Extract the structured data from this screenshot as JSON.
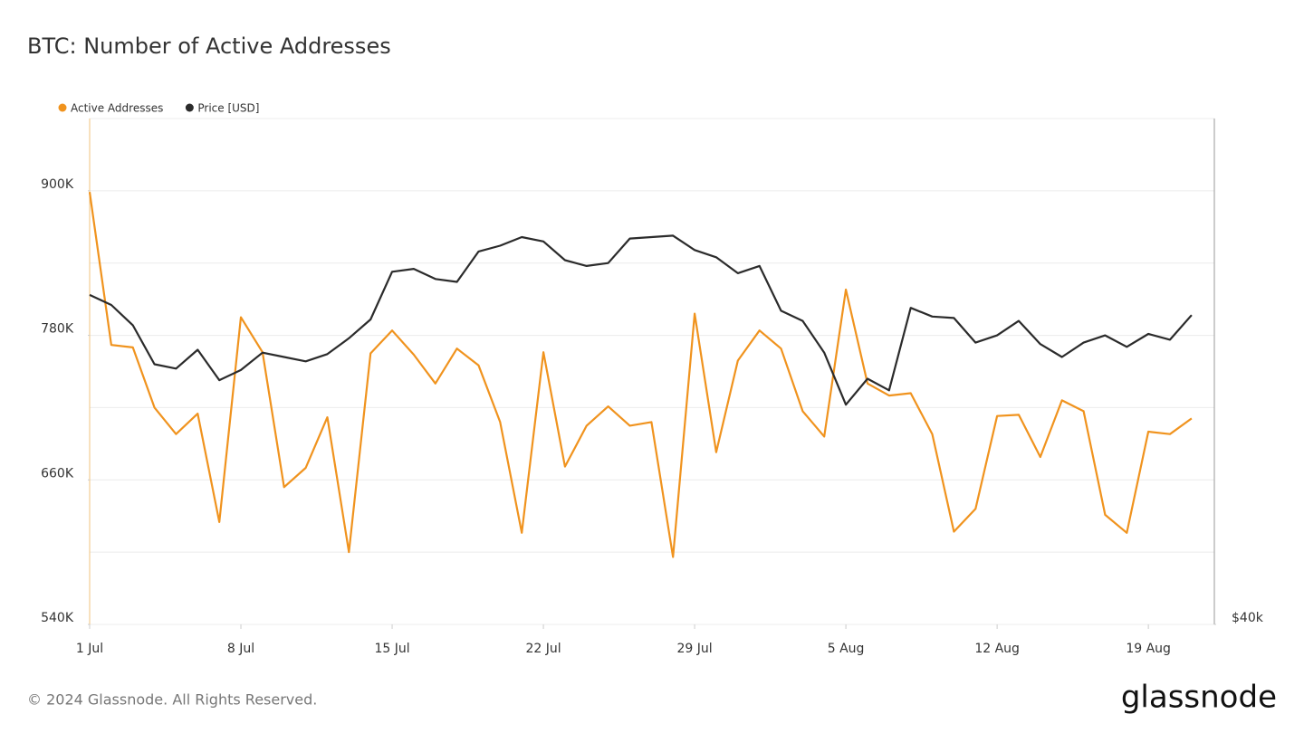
{
  "chart_data": {
    "type": "line",
    "title": "BTC: Number of Active Addresses",
    "categories": [
      "1 Jul",
      null,
      null,
      null,
      null,
      null,
      null,
      "8 Jul",
      null,
      null,
      null,
      null,
      null,
      null,
      "15 Jul",
      null,
      null,
      null,
      null,
      null,
      null,
      "22 Jul",
      null,
      null,
      null,
      null,
      null,
      null,
      "29 Jul",
      null,
      null,
      null,
      null,
      null,
      null,
      "5 Aug",
      null,
      null,
      null,
      null,
      null,
      null,
      "12 Aug",
      null,
      null,
      null,
      null,
      null,
      null,
      "19 Aug",
      null,
      null
    ],
    "series": [
      {
        "name": "Active Addresses",
        "color": "#f0931e",
        "axis": "y",
        "values": [
          899000,
          772000,
          770000,
          720000,
          698000,
          715000,
          625000,
          795000,
          766000,
          654000,
          670000,
          712000,
          600000,
          765000,
          784000,
          764000,
          740000,
          769000,
          755000,
          708000,
          616000,
          766000,
          671000,
          705000,
          721000,
          705000,
          708000,
          596000,
          798000,
          683000,
          759000,
          784000,
          769000,
          717000,
          696000,
          818000,
          740000,
          730000,
          732000,
          698000,
          617000,
          636000,
          713000,
          714000,
          679000,
          726000,
          717000,
          631000,
          616000,
          700000,
          698000,
          711000
        ]
      },
      {
        "name": "Price [USD]",
        "color": "#2b2b2b",
        "axis": "y2",
        "values": [
          62800,
          62100,
          60700,
          58000,
          57700,
          59000,
          56900,
          57600,
          58800,
          58500,
          58200,
          58700,
          59800,
          61100,
          64400,
          64600,
          63900,
          63700,
          65800,
          66200,
          66800,
          66500,
          65200,
          64800,
          65000,
          66700,
          66800,
          66900,
          65900,
          65400,
          64300,
          64800,
          61700,
          61000,
          58800,
          55200,
          57000,
          56200,
          61900,
          61300,
          61200,
          59500,
          60000,
          61000,
          59400,
          58500,
          59500,
          60000,
          59200,
          60100,
          59700,
          61400
        ]
      }
    ],
    "ylim": [
      540000,
      960000
    ],
    "yticks": [
      {
        "value": 540000,
        "label": "540K"
      },
      {
        "value": 660000,
        "label": "660K"
      },
      {
        "value": 780000,
        "label": "780K"
      },
      {
        "value": 900000,
        "label": "900K"
      }
    ],
    "ygrid": [
      540000,
      600000,
      660000,
      720000,
      780000,
      840000,
      900000
    ],
    "y2lim": [
      40000,
      75000
    ],
    "y2ticks": [
      {
        "value": 40000,
        "label": "$40k"
      }
    ],
    "grid": true,
    "legend": "top-left"
  },
  "footer": {
    "copyright": "© 2024 Glassnode. All Rights Reserved.",
    "logo": "glassnode"
  }
}
